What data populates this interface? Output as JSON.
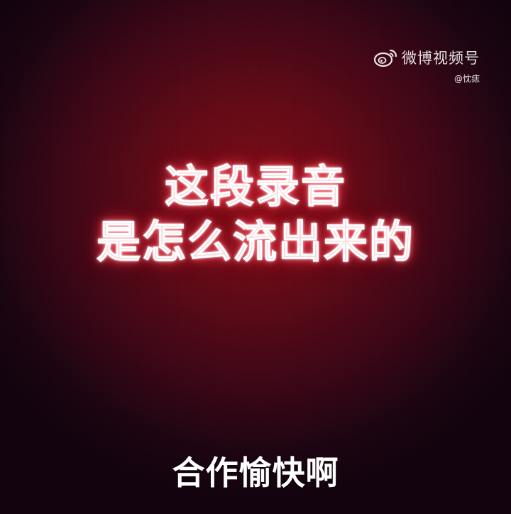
{
  "watermark": {
    "logo_icon": "weibo-logo-icon",
    "brand": "微博视频号",
    "handle": "@忱痣"
  },
  "headline": {
    "line1": "这段录音",
    "line2": "是怎么流出来的"
  },
  "subtitle": "合作愉快啊",
  "colors": {
    "background_center": "#7e0e18",
    "background_edge": "#12030e",
    "headline_glow": "#ff3c50",
    "text": "#ffffff"
  }
}
